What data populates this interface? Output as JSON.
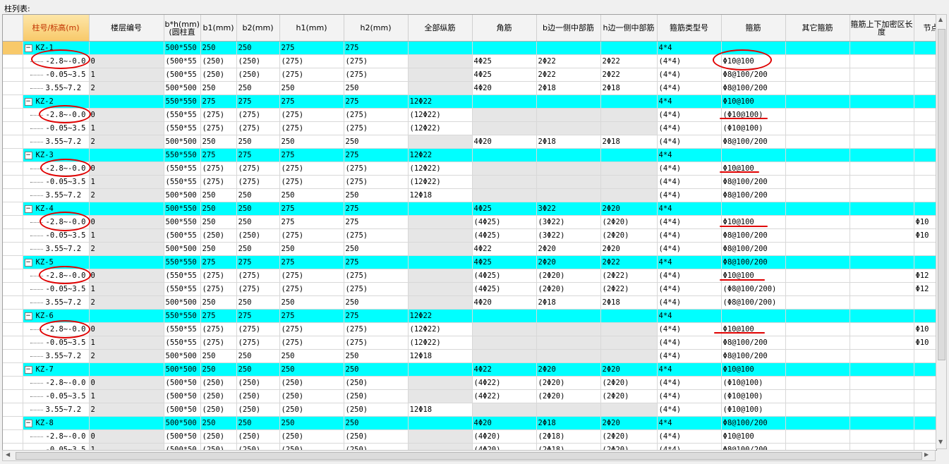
{
  "caption": "柱列表:",
  "headers": [
    "柱号/标高(m)",
    "楼层编号",
    "b*h(mm)(圆柱直",
    "b1(mm)",
    "b2(mm)",
    "h1(mm)",
    "h2(mm)",
    "全部纵筋",
    "角筋",
    "b边一侧中部筋",
    "h边一侧中部筋",
    "箍筋类型号",
    "箍筋",
    "其它箍筋",
    "箍筋上下加密区长度",
    "节点"
  ],
  "rows": [
    {
      "type": "parent",
      "selected": true,
      "cells": [
        "KZ-1",
        "",
        "500*550",
        "250",
        "250",
        "275",
        "275",
        "",
        "",
        "",
        "",
        "4*4",
        "",
        "",
        "",
        ""
      ]
    },
    {
      "type": "child",
      "cells": [
        "-2.8~-0.0",
        "0",
        "(500*55",
        "(250)",
        "(250)",
        "(275)",
        "(275)",
        "",
        "4Φ25",
        "2Φ22",
        "2Φ22",
        "(4*4)",
        "Φ10@100",
        "",
        "",
        ""
      ]
    },
    {
      "type": "child",
      "cells": [
        "-0.05~3.5",
        "1",
        "(500*55",
        "(250)",
        "(250)",
        "(275)",
        "(275)",
        "",
        "4Φ25",
        "2Φ22",
        "2Φ22",
        "(4*4)",
        "Φ8@100/200",
        "",
        "",
        ""
      ]
    },
    {
      "type": "child",
      "cells": [
        "3.55~7.2",
        "2",
        "500*500",
        "250",
        "250",
        "250",
        "250",
        "",
        "4Φ20",
        "2Φ18",
        "2Φ18",
        "(4*4)",
        "Φ8@100/200",
        "",
        "",
        ""
      ]
    },
    {
      "type": "parent",
      "cells": [
        "KZ-2",
        "",
        "550*550",
        "275",
        "275",
        "275",
        "275",
        "12Φ22",
        "",
        "",
        "",
        "4*4",
        "Φ10@100",
        "",
        "",
        ""
      ]
    },
    {
      "type": "child",
      "cells": [
        "-2.8~-0.0",
        "0",
        "(550*55",
        "(275)",
        "(275)",
        "(275)",
        "(275)",
        "(12Φ22)",
        "",
        "",
        "",
        "(4*4)",
        "(Φ10@100)",
        "",
        "",
        ""
      ]
    },
    {
      "type": "child",
      "cells": [
        "-0.05~3.5",
        "1",
        "(550*55",
        "(275)",
        "(275)",
        "(275)",
        "(275)",
        "(12Φ22)",
        "",
        "",
        "",
        "(4*4)",
        "(Φ10@100)",
        "",
        "",
        ""
      ]
    },
    {
      "type": "child",
      "cells": [
        "3.55~7.2",
        "2",
        "500*500",
        "250",
        "250",
        "250",
        "250",
        "",
        "4Φ20",
        "2Φ18",
        "2Φ18",
        "(4*4)",
        "Φ8@100/200",
        "",
        "",
        ""
      ]
    },
    {
      "type": "parent",
      "cells": [
        "KZ-3",
        "",
        "550*550",
        "275",
        "275",
        "275",
        "275",
        "12Φ22",
        "",
        "",
        "",
        "4*4",
        "",
        "",
        "",
        ""
      ]
    },
    {
      "type": "child",
      "cells": [
        "-2.8~-0.0",
        "0",
        "(550*55",
        "(275)",
        "(275)",
        "(275)",
        "(275)",
        "(12Φ22)",
        "",
        "",
        "",
        "(4*4)",
        "Φ10@100",
        "",
        "",
        ""
      ]
    },
    {
      "type": "child",
      "cells": [
        "-0.05~3.5",
        "1",
        "(550*55",
        "(275)",
        "(275)",
        "(275)",
        "(275)",
        "(12Φ22)",
        "",
        "",
        "",
        "(4*4)",
        "Φ8@100/200",
        "",
        "",
        ""
      ]
    },
    {
      "type": "child",
      "cells": [
        "3.55~7.2",
        "2",
        "500*500",
        "250",
        "250",
        "250",
        "250",
        "12Φ18",
        "",
        "",
        "",
        "(4*4)",
        "Φ8@100/200",
        "",
        "",
        ""
      ]
    },
    {
      "type": "parent",
      "cells": [
        "KZ-4",
        "",
        "500*550",
        "250",
        "250",
        "275",
        "275",
        "",
        "4Φ25",
        "3Φ22",
        "2Φ20",
        "4*4",
        "",
        "",
        "",
        ""
      ]
    },
    {
      "type": "child",
      "cells": [
        "-2.8~-0.0",
        "0",
        "500*550",
        "250",
        "250",
        "275",
        "275",
        "",
        "(4Φ25)",
        "(3Φ22)",
        "(2Φ20)",
        "(4*4)",
        "Φ10@100",
        "",
        "",
        "Φ10"
      ]
    },
    {
      "type": "child",
      "cells": [
        "-0.05~3.5",
        "1",
        "(500*55",
        "(250)",
        "(250)",
        "(275)",
        "(275)",
        "",
        "(4Φ25)",
        "(3Φ22)",
        "(2Φ20)",
        "(4*4)",
        "Φ8@100/200",
        "",
        "",
        "Φ10"
      ]
    },
    {
      "type": "child",
      "cells": [
        "3.55~7.2",
        "2",
        "500*500",
        "250",
        "250",
        "250",
        "250",
        "",
        "4Φ22",
        "2Φ20",
        "2Φ20",
        "(4*4)",
        "Φ8@100/200",
        "",
        "",
        ""
      ]
    },
    {
      "type": "parent",
      "cells": [
        "KZ-5",
        "",
        "550*550",
        "275",
        "275",
        "275",
        "275",
        "",
        "4Φ25",
        "2Φ20",
        "2Φ22",
        "4*4",
        "Φ8@100/200",
        "",
        "",
        ""
      ]
    },
    {
      "type": "child",
      "cells": [
        "-2.8~-0.0",
        "0",
        "(550*55",
        "(275)",
        "(275)",
        "(275)",
        "(275)",
        "",
        "(4Φ25)",
        "(2Φ20)",
        "(2Φ22)",
        "(4*4)",
        "Φ10@100",
        "",
        "",
        "Φ12"
      ]
    },
    {
      "type": "child",
      "cells": [
        "-0.05~3.5",
        "1",
        "(550*55",
        "(275)",
        "(275)",
        "(275)",
        "(275)",
        "",
        "(4Φ25)",
        "(2Φ20)",
        "(2Φ22)",
        "(4*4)",
        "(Φ8@100/200)",
        "",
        "",
        "Φ12"
      ]
    },
    {
      "type": "child",
      "cells": [
        "3.55~7.2",
        "2",
        "500*500",
        "250",
        "250",
        "250",
        "250",
        "",
        "4Φ20",
        "2Φ18",
        "2Φ18",
        "(4*4)",
        "(Φ8@100/200)",
        "",
        "",
        ""
      ]
    },
    {
      "type": "parent",
      "cells": [
        "KZ-6",
        "",
        "550*550",
        "275",
        "275",
        "275",
        "275",
        "12Φ22",
        "",
        "",
        "",
        "4*4",
        "",
        "",
        "",
        ""
      ]
    },
    {
      "type": "child",
      "cells": [
        "-2.8~-0.0",
        "0",
        "(550*55",
        "(275)",
        "(275)",
        "(275)",
        "(275)",
        "(12Φ22)",
        "",
        "",
        "",
        "(4*4)",
        "Φ10@100",
        "",
        "",
        "Φ10"
      ]
    },
    {
      "type": "child",
      "cells": [
        "-0.05~3.5",
        "1",
        "(550*55",
        "(275)",
        "(275)",
        "(275)",
        "(275)",
        "(12Φ22)",
        "",
        "",
        "",
        "(4*4)",
        "Φ8@100/200",
        "",
        "",
        "Φ10"
      ]
    },
    {
      "type": "child",
      "cells": [
        "3.55~7.2",
        "2",
        "500*500",
        "250",
        "250",
        "250",
        "250",
        "12Φ18",
        "",
        "",
        "",
        "(4*4)",
        "Φ8@100/200",
        "",
        "",
        ""
      ]
    },
    {
      "type": "parent",
      "cells": [
        "KZ-7",
        "",
        "500*500",
        "250",
        "250",
        "250",
        "250",
        "",
        "4Φ22",
        "2Φ20",
        "2Φ20",
        "4*4",
        "Φ10@100",
        "",
        "",
        ""
      ]
    },
    {
      "type": "child",
      "cells": [
        "-2.8~-0.0",
        "0",
        "(500*50",
        "(250)",
        "(250)",
        "(250)",
        "(250)",
        "",
        "(4Φ22)",
        "(2Φ20)",
        "(2Φ20)",
        "(4*4)",
        "(Φ10@100)",
        "",
        "",
        ""
      ]
    },
    {
      "type": "child",
      "cells": [
        "-0.05~3.5",
        "1",
        "(500*50",
        "(250)",
        "(250)",
        "(250)",
        "(250)",
        "",
        "(4Φ22)",
        "(2Φ20)",
        "(2Φ20)",
        "(4*4)",
        "(Φ10@100)",
        "",
        "",
        ""
      ]
    },
    {
      "type": "child",
      "cells": [
        "3.55~7.2",
        "2",
        "(500*50",
        "(250)",
        "(250)",
        "(250)",
        "(250)",
        "12Φ18",
        "",
        "",
        "",
        "(4*4)",
        "(Φ10@100)",
        "",
        "",
        ""
      ]
    },
    {
      "type": "parent",
      "cells": [
        "KZ-8",
        "",
        "500*500",
        "250",
        "250",
        "250",
        "250",
        "",
        "4Φ20",
        "2Φ18",
        "2Φ20",
        "4*4",
        "Φ8@100/200",
        "",
        "",
        ""
      ]
    },
    {
      "type": "child",
      "cells": [
        "-2.8~-0.0",
        "0",
        "(500*50",
        "(250)",
        "(250)",
        "(250)",
        "(250)",
        "",
        "(4Φ20)",
        "(2Φ18)",
        "(2Φ20)",
        "(4*4)",
        "Φ10@100",
        "",
        "",
        ""
      ]
    },
    {
      "type": "child",
      "cells": [
        "-0.05~3.5",
        "1",
        "(500*50",
        "(250)",
        "(250)",
        "(250)",
        "(250)",
        "",
        "(4Φ20)",
        "(2Φ18)",
        "(2Φ20)",
        "(4*4)",
        "Φ8@100/200",
        "",
        "",
        ""
      ]
    }
  ],
  "colors": {
    "parent_row": "#00ffff",
    "grey_cell": "#e6e6e6",
    "annotation": "#e00000",
    "active_header": "#f8c96a"
  }
}
